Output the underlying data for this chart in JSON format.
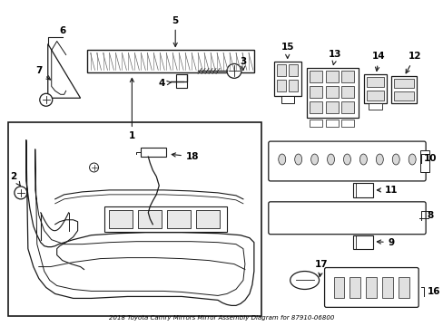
{
  "title": "2018 Toyota Camry Mirrors Mirror Assembly Diagram for 87910-06800",
  "background_color": "#ffffff",
  "line_color": "#1a1a1a",
  "text_color": "#000000",
  "fig_width": 4.89,
  "fig_height": 3.6,
  "dpi": 100
}
